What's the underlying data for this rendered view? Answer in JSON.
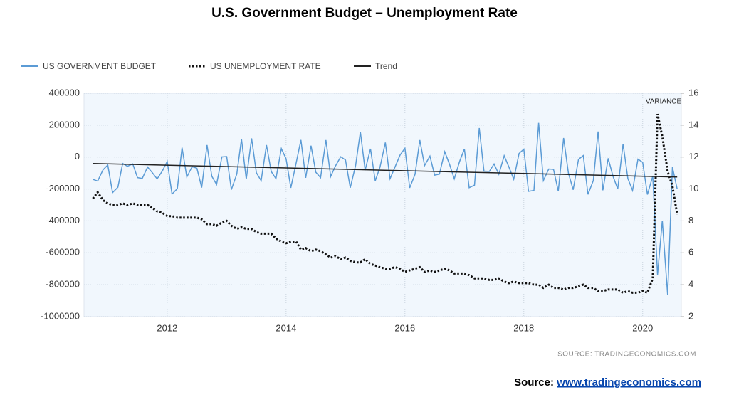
{
  "chart_data": {
    "type": "line",
    "title": "U.S. Government Budget – Unemployment Rate",
    "annotation": "VARIANCE",
    "source_note": "SOURCE:  TRADINGECONOMICS.COM",
    "source_label": "Source:",
    "source_link": "www.tradingeconomics.com",
    "xlim": [
      2010.6,
      2020.65
    ],
    "xticks": [
      2012,
      2014,
      2016,
      2018,
      2020
    ],
    "ylim": [
      -1000000,
      400000
    ],
    "yticks": [
      -1000000,
      -800000,
      -600000,
      -400000,
      -200000,
      0,
      200000,
      400000
    ],
    "y2lim": [
      2,
      16
    ],
    "y2ticks": [
      2,
      4,
      6,
      8,
      10,
      12,
      14,
      16
    ],
    "grid": true,
    "legend": "top-left",
    "x": [
      2010.75,
      2010.83,
      2010.92,
      2011.0,
      2011.08,
      2011.17,
      2011.25,
      2011.33,
      2011.42,
      2011.5,
      2011.58,
      2011.67,
      2011.75,
      2011.83,
      2011.92,
      2012.0,
      2012.08,
      2012.17,
      2012.25,
      2012.33,
      2012.42,
      2012.5,
      2012.58,
      2012.67,
      2012.75,
      2012.83,
      2012.92,
      2013.0,
      2013.08,
      2013.17,
      2013.25,
      2013.33,
      2013.42,
      2013.5,
      2013.58,
      2013.67,
      2013.75,
      2013.83,
      2013.92,
      2014.0,
      2014.08,
      2014.17,
      2014.25,
      2014.33,
      2014.42,
      2014.5,
      2014.58,
      2014.67,
      2014.75,
      2014.83,
      2014.92,
      2015.0,
      2015.08,
      2015.17,
      2015.25,
      2015.33,
      2015.42,
      2015.5,
      2015.58,
      2015.67,
      2015.75,
      2015.83,
      2015.92,
      2016.0,
      2016.08,
      2016.17,
      2016.25,
      2016.33,
      2016.42,
      2016.5,
      2016.58,
      2016.67,
      2016.75,
      2016.83,
      2016.92,
      2017.0,
      2017.08,
      2017.17,
      2017.25,
      2017.33,
      2017.42,
      2017.5,
      2017.58,
      2017.67,
      2017.75,
      2017.83,
      2017.92,
      2018.0,
      2018.08,
      2018.17,
      2018.25,
      2018.33,
      2018.42,
      2018.5,
      2018.58,
      2018.67,
      2018.75,
      2018.83,
      2018.92,
      2019.0,
      2019.08,
      2019.17,
      2019.25,
      2019.33,
      2019.42,
      2019.5,
      2019.58,
      2019.67,
      2019.75,
      2019.83,
      2019.92,
      2020.0,
      2020.08,
      2020.17,
      2020.25,
      2020.33,
      2020.42,
      2020.5,
      2020.58
    ],
    "series": [
      {
        "name": "US GOVERNMENT BUDGET",
        "color": "#5b9bd5",
        "style": "solid",
        "axis": "y",
        "values": [
          -140000,
          -150000,
          -80000,
          -50000,
          -223000,
          -189000,
          -40000,
          -58000,
          -43000,
          -129000,
          -134000,
          -63000,
          -98000,
          -137000,
          -86000,
          -27000,
          -232000,
          -198000,
          59000,
          -125000,
          -60000,
          -70000,
          -191000,
          75000,
          -120000,
          -172000,
          1000,
          3000,
          -204000,
          -107000,
          113000,
          -139000,
          117000,
          -98000,
          -148000,
          75000,
          -91000,
          -135000,
          53000,
          -10000,
          -193000,
          -37000,
          107000,
          -130000,
          71000,
          -95000,
          -129000,
          106000,
          -122000,
          -57000,
          2000,
          -18000,
          -192000,
          -53000,
          157000,
          -82000,
          52000,
          -149000,
          -64000,
          91000,
          -136000,
          -65000,
          14000,
          55000,
          -193000,
          -108000,
          106000,
          -53000,
          6000,
          -113000,
          -107000,
          33000,
          -45000,
          -137000,
          -27000,
          51000,
          -192000,
          -176000,
          182000,
          -88000,
          -90000,
          -43000,
          -108000,
          8000,
          -63000,
          -139000,
          23000,
          49000,
          -215000,
          -209000,
          214000,
          -147000,
          -75000,
          -77000,
          -214000,
          119000,
          -100000,
          -205000,
          -14000,
          9000,
          -234000,
          -147000,
          160000,
          -208000,
          -8000,
          -120000,
          -200000,
          83000,
          -134000,
          -209000,
          -13000,
          -33000,
          -235000,
          -119000,
          -738000,
          -399000,
          -864000,
          -63000,
          -200000
        ]
      },
      {
        "name": "US UNEMPLOYMENT RATE",
        "color": "#111111",
        "style": "dotted",
        "axis": "y2",
        "values": [
          9.4,
          9.8,
          9.3,
          9.1,
          9.0,
          9.0,
          9.1,
          9.0,
          9.1,
          9.0,
          9.0,
          9.0,
          8.8,
          8.6,
          8.5,
          8.3,
          8.3,
          8.2,
          8.2,
          8.2,
          8.2,
          8.2,
          8.1,
          7.8,
          7.8,
          7.7,
          7.9,
          8.0,
          7.7,
          7.5,
          7.6,
          7.5,
          7.5,
          7.3,
          7.2,
          7.2,
          7.2,
          6.9,
          6.7,
          6.6,
          6.7,
          6.7,
          6.2,
          6.3,
          6.1,
          6.2,
          6.1,
          5.9,
          5.7,
          5.8,
          5.6,
          5.7,
          5.5,
          5.4,
          5.4,
          5.6,
          5.3,
          5.2,
          5.1,
          5.0,
          5.0,
          5.1,
          5.0,
          4.8,
          4.9,
          5.0,
          5.1,
          4.8,
          4.9,
          4.8,
          4.9,
          5.0,
          4.9,
          4.7,
          4.7,
          4.7,
          4.6,
          4.4,
          4.4,
          4.4,
          4.3,
          4.3,
          4.4,
          4.2,
          4.1,
          4.2,
          4.1,
          4.1,
          4.1,
          4.0,
          4.0,
          3.8,
          4.0,
          3.8,
          3.8,
          3.7,
          3.8,
          3.8,
          3.9,
          4.0,
          3.8,
          3.8,
          3.6,
          3.6,
          3.7,
          3.7,
          3.7,
          3.5,
          3.6,
          3.5,
          3.5,
          3.6,
          3.5,
          4.4,
          14.7,
          13.3,
          11.1,
          10.2,
          8.4
        ]
      },
      {
        "name": "Trend",
        "color": "#222222",
        "style": "solid",
        "axis": "y",
        "x": [
          2010.75,
          2020.58
        ],
        "values": [
          -40000,
          -125000
        ]
      }
    ]
  }
}
